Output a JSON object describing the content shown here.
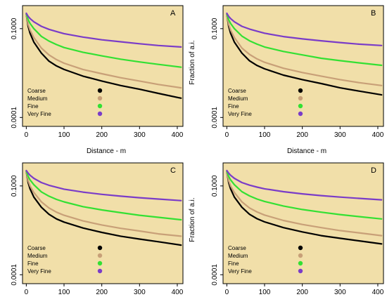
{
  "colors": {
    "background": "#f1dfa9",
    "coarse": "#000000",
    "medium": "#c8a078",
    "fine": "#33e033",
    "very_fine": "#7a3cc8"
  },
  "chart_data": [
    {
      "type": "line",
      "panel_label": "A",
      "xlabel": "Distance - m",
      "ylabel": "Fraction of a.i.",
      "x_ticks": [
        0,
        100,
        200,
        300,
        400
      ],
      "y_ticks": [
        "0.1000",
        "0.0001"
      ],
      "xlim": [
        -10,
        415
      ],
      "y_scale": "log",
      "ylim": [
        5e-05,
        0.6
      ],
      "legend": "lower-right",
      "x": [
        0,
        5,
        10,
        20,
        40,
        60,
        80,
        100,
        150,
        200,
        250,
        300,
        350,
        410
      ],
      "series": [
        {
          "name": "Coarse",
          "color": "#000000",
          "values": [
            0.3,
            0.12,
            0.07,
            0.035,
            0.015,
            0.008,
            0.0055,
            0.0042,
            0.0025,
            0.0017,
            0.0012,
            0.0009,
            0.00065,
            0.00045
          ]
        },
        {
          "name": "Medium",
          "color": "#c8a078",
          "values": [
            0.3,
            0.14,
            0.09,
            0.05,
            0.022,
            0.013,
            0.009,
            0.0068,
            0.0042,
            0.003,
            0.0022,
            0.0017,
            0.0013,
            0.001
          ]
        },
        {
          "name": "Fine",
          "color": "#33e033",
          "values": [
            0.32,
            0.2,
            0.15,
            0.1,
            0.055,
            0.038,
            0.029,
            0.023,
            0.016,
            0.012,
            0.0093,
            0.0075,
            0.0062,
            0.005
          ]
        },
        {
          "name": "Very Fine",
          "color": "#7a3cc8",
          "values": [
            0.33,
            0.26,
            0.22,
            0.17,
            0.12,
            0.095,
            0.08,
            0.068,
            0.052,
            0.042,
            0.036,
            0.031,
            0.027,
            0.024
          ]
        }
      ]
    },
    {
      "type": "line",
      "panel_label": "B",
      "xlabel": "Distance - m",
      "ylabel": "",
      "x_ticks": [
        0,
        100,
        200,
        300,
        400
      ],
      "y_ticks": [
        "0.1000",
        "0.0001"
      ],
      "xlim": [
        -10,
        415
      ],
      "y_scale": "log",
      "ylim": [
        5e-05,
        0.6
      ],
      "legend": "lower-right",
      "x": [
        0,
        5,
        10,
        20,
        40,
        60,
        80,
        100,
        150,
        200,
        250,
        300,
        350,
        410
      ],
      "series": [
        {
          "name": "Coarse",
          "color": "#000000",
          "values": [
            0.3,
            0.12,
            0.07,
            0.035,
            0.015,
            0.0082,
            0.0057,
            0.0044,
            0.0027,
            0.0019,
            0.0014,
            0.001,
            0.00078,
            0.00058
          ]
        },
        {
          "name": "Medium",
          "color": "#c8a078",
          "values": [
            0.3,
            0.14,
            0.09,
            0.05,
            0.022,
            0.0135,
            0.0095,
            0.0073,
            0.0046,
            0.0033,
            0.0025,
            0.0019,
            0.0015,
            0.0012
          ]
        },
        {
          "name": "Fine",
          "color": "#33e033",
          "values": [
            0.32,
            0.2,
            0.15,
            0.1,
            0.056,
            0.039,
            0.03,
            0.024,
            0.017,
            0.013,
            0.01,
            0.0083,
            0.007,
            0.0058
          ]
        },
        {
          "name": "Very Fine",
          "color": "#7a3cc8",
          "values": [
            0.33,
            0.26,
            0.22,
            0.17,
            0.12,
            0.097,
            0.082,
            0.07,
            0.054,
            0.045,
            0.039,
            0.034,
            0.03,
            0.027
          ]
        }
      ]
    },
    {
      "type": "line",
      "panel_label": "C",
      "xlabel": "",
      "ylabel": "Fraction of a.i.",
      "x_ticks": [
        0,
        100,
        200,
        300,
        400
      ],
      "y_ticks": [
        "0.1000",
        "0.0001"
      ],
      "xlim": [
        -10,
        415
      ],
      "y_scale": "log",
      "ylim": [
        5e-05,
        0.6
      ],
      "legend": "lower-right",
      "x": [
        0,
        5,
        10,
        20,
        40,
        60,
        80,
        100,
        150,
        200,
        250,
        300,
        350,
        410
      ],
      "series": [
        {
          "name": "Coarse",
          "color": "#000000",
          "values": [
            0.3,
            0.13,
            0.08,
            0.042,
            0.019,
            0.011,
            0.0077,
            0.006,
            0.0038,
            0.0027,
            0.002,
            0.0016,
            0.0013,
            0.001
          ]
        },
        {
          "name": "Medium",
          "color": "#c8a078",
          "values": [
            0.3,
            0.15,
            0.1,
            0.06,
            0.029,
            0.018,
            0.013,
            0.0102,
            0.0066,
            0.0048,
            0.0037,
            0.003,
            0.0024,
            0.002
          ]
        },
        {
          "name": "Fine",
          "color": "#33e033",
          "values": [
            0.32,
            0.21,
            0.16,
            0.11,
            0.063,
            0.045,
            0.035,
            0.029,
            0.02,
            0.0155,
            0.0125,
            0.0102,
            0.0087,
            0.0072
          ]
        },
        {
          "name": "Very Fine",
          "color": "#7a3cc8",
          "values": [
            0.33,
            0.27,
            0.23,
            0.18,
            0.13,
            0.105,
            0.09,
            0.078,
            0.062,
            0.052,
            0.045,
            0.04,
            0.036,
            0.032
          ]
        }
      ]
    },
    {
      "type": "line",
      "panel_label": "D",
      "xlabel": "",
      "ylabel": "",
      "x_ticks": [
        0,
        100,
        200,
        300,
        400
      ],
      "y_ticks": [
        "0.1000",
        "0.0001"
      ],
      "xlim": [
        -10,
        415
      ],
      "y_scale": "log",
      "ylim": [
        5e-05,
        0.6
      ],
      "legend": "lower-right",
      "x": [
        0,
        5,
        10,
        20,
        40,
        60,
        80,
        100,
        150,
        200,
        250,
        300,
        350,
        410
      ],
      "series": [
        {
          "name": "Coarse",
          "color": "#000000",
          "values": [
            0.3,
            0.13,
            0.08,
            0.042,
            0.019,
            0.011,
            0.0078,
            0.0061,
            0.0039,
            0.0028,
            0.0021,
            0.0017,
            0.0014,
            0.0011
          ]
        },
        {
          "name": "Medium",
          "color": "#c8a078",
          "values": [
            0.3,
            0.15,
            0.1,
            0.06,
            0.029,
            0.018,
            0.0132,
            0.0104,
            0.0068,
            0.005,
            0.0039,
            0.0031,
            0.0026,
            0.0021
          ]
        },
        {
          "name": "Fine",
          "color": "#33e033",
          "values": [
            0.32,
            0.21,
            0.16,
            0.11,
            0.064,
            0.046,
            0.036,
            0.03,
            0.021,
            0.016,
            0.013,
            0.0108,
            0.0092,
            0.0077
          ]
        },
        {
          "name": "Very Fine",
          "color": "#7a3cc8",
          "values": [
            0.33,
            0.27,
            0.23,
            0.18,
            0.13,
            0.106,
            0.091,
            0.08,
            0.064,
            0.054,
            0.047,
            0.042,
            0.038,
            0.034
          ]
        }
      ]
    }
  ]
}
